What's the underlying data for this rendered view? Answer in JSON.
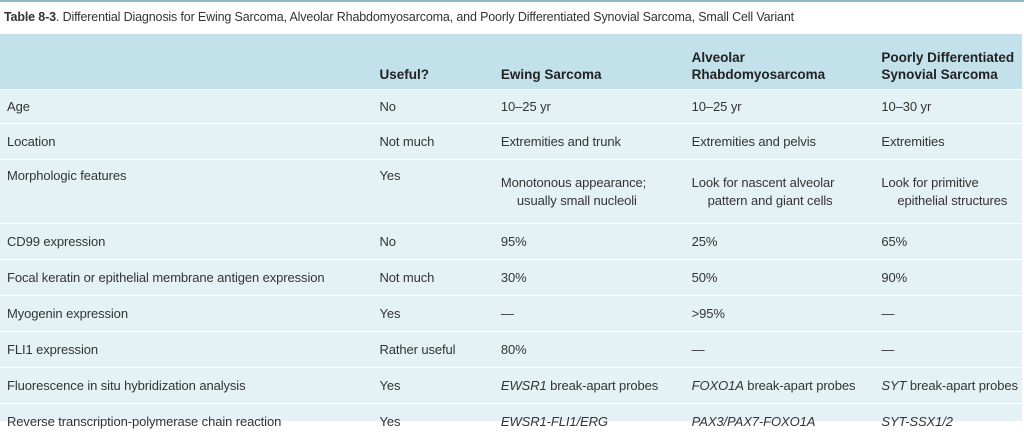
{
  "caption": {
    "label": "Table 8-3",
    "text": ".  Differential Diagnosis for Ewing Sarcoma, Alveolar Rhabdomyosarcoma, and Poorly Differentiated Synovial Sarcoma, Small Cell Variant"
  },
  "headers": {
    "feature": "",
    "useful": "Useful?",
    "ewing": "Ewing Sarcoma",
    "alveolar_line1": "Alveolar",
    "alveolar_line2": "Rhabdomyosarcoma",
    "synovial_line1": "Poorly Differentiated",
    "synovial_line2": "Synovial Sarcoma"
  },
  "rows": [
    {
      "feature": "Age",
      "useful": "No",
      "ewing": "10–25 yr",
      "alveolar": "10–25 yr",
      "synovial": "10–30 yr"
    },
    {
      "feature": "Location",
      "useful": "Not much",
      "ewing": "Extremities and trunk",
      "alveolar": "Extremities and pelvis",
      "synovial": "Extremities"
    },
    {
      "feature": "Morphologic features",
      "useful": "Yes",
      "ewing_1": "Monotonous appearance;",
      "ewing_2": "usually small nucleoli",
      "alveolar_1": "Look for nascent alveolar",
      "alveolar_2": "pattern and giant cells",
      "synovial_1": "Look for primitive",
      "synovial_2": "epithelial structures"
    },
    {
      "feature": "CD99 expression",
      "useful": "No",
      "ewing": "95%",
      "alveolar": "25%",
      "synovial": "65%"
    },
    {
      "feature": "Focal keratin or epithelial membrane antigen expression",
      "useful": "Not much",
      "ewing": "30%",
      "alveolar": "50%",
      "synovial": "90%"
    },
    {
      "feature": "Myogenin expression",
      "useful": "Yes",
      "ewing": "—",
      "alveolar": ">95%",
      "synovial": "—"
    },
    {
      "feature": "FLI1 expression",
      "useful": "Rather useful",
      "ewing": "80%",
      "alveolar": "—",
      "synovial": "—"
    },
    {
      "feature": "Fluorescence in situ hybridization analysis",
      "useful": "Yes",
      "ewing_gene": "EWSR1",
      "ewing_rest": " break-apart probes",
      "alveolar_gene": "FOXO1A",
      "alveolar_rest": " break-apart probes",
      "synovial_gene": "SYT",
      "synovial_rest": " break-apart probes"
    },
    {
      "feature": "Reverse transcription-polymerase chain reaction",
      "useful": "Yes",
      "ewing": "EWSR1-FLI1/ERG",
      "alveolar": "PAX3/PAX7-FOXO1A",
      "synovial": "SYT-SSX1/2"
    }
  ]
}
